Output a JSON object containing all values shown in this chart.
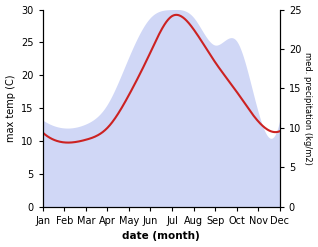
{
  "months": [
    "Jan",
    "Feb",
    "Mar",
    "Apr",
    "May",
    "Jun",
    "Jul",
    "Aug",
    "Sep",
    "Oct",
    "Nov",
    "Dec"
  ],
  "month_indices": [
    1,
    2,
    3,
    4,
    5,
    6,
    7,
    8,
    9,
    10,
    11,
    12
  ],
  "temp_line": [
    11.3,
    9.8,
    10.2,
    12.0,
    17.0,
    23.5,
    29.0,
    27.0,
    22.0,
    17.5,
    13.0,
    11.5
  ],
  "precip_fill": [
    11.0,
    10.0,
    10.5,
    13.0,
    19.0,
    24.0,
    25.0,
    24.0,
    20.5,
    21.0,
    12.0,
    11.0
  ],
  "temp_ylim": [
    0,
    30
  ],
  "precip_ylim": [
    0,
    25
  ],
  "temp_yticks": [
    0,
    5,
    10,
    15,
    20,
    25,
    30
  ],
  "precip_yticks": [
    0,
    5,
    10,
    15,
    20,
    25
  ],
  "xlabel": "date (month)",
  "ylabel_left": "max temp (C)",
  "ylabel_right": "med. precipitation (kg/m2)",
  "line_color": "#cc2222",
  "fill_color": "#c8d0f5",
  "fill_alpha": 0.85,
  "background_color": "#ffffff"
}
